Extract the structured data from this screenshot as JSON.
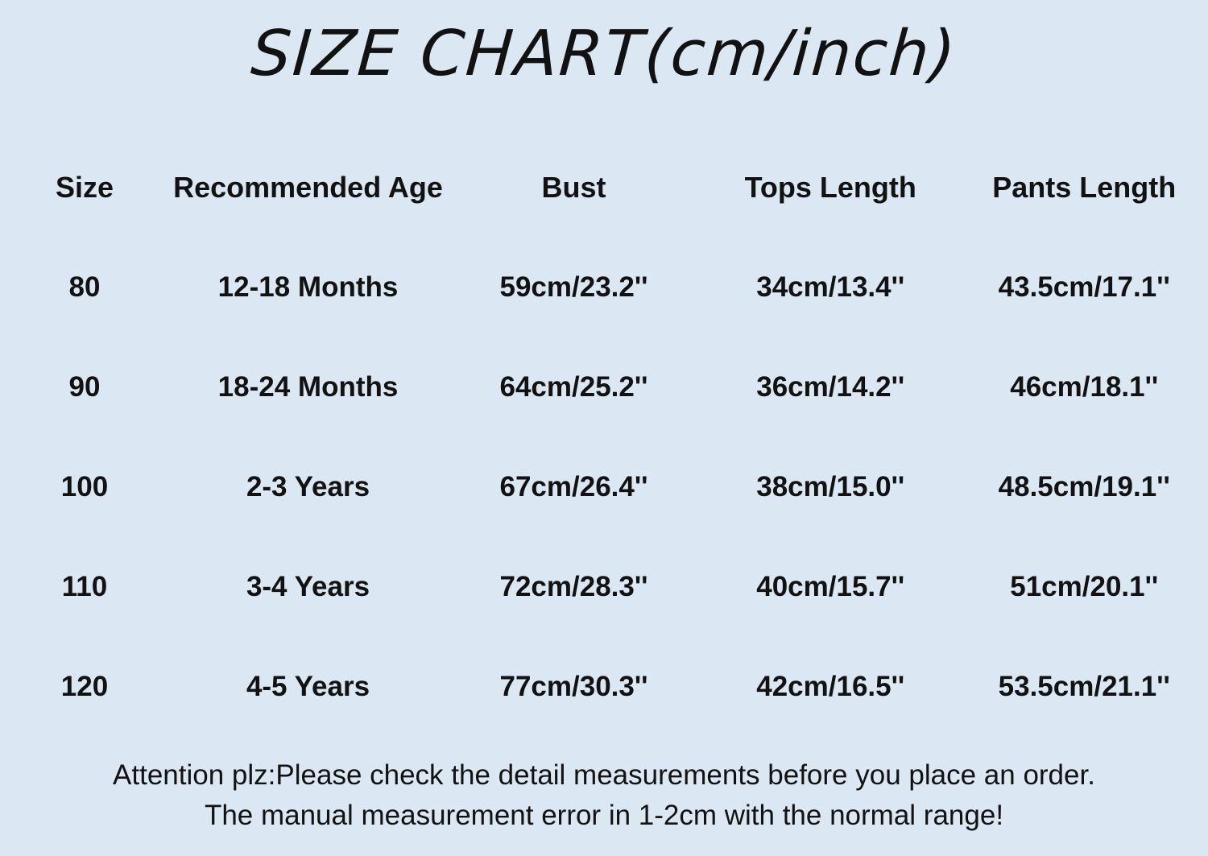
{
  "page": {
    "background_color": "#dbe8f4",
    "text_color": "#121212"
  },
  "title": "SIZE CHART(cm/inch)",
  "table": {
    "headers": [
      "Size",
      "Recommended Age",
      "Bust",
      "Tops Length",
      "Pants Length"
    ],
    "rows": [
      [
        "80",
        "12-18 Months",
        "59cm/23.2''",
        "34cm/13.4''",
        "43.5cm/17.1''"
      ],
      [
        "90",
        "18-24 Months",
        "64cm/25.2''",
        "36cm/14.2''",
        "46cm/18.1''"
      ],
      [
        "100",
        "2-3 Years",
        "67cm/26.4''",
        "38cm/15.0''",
        "48.5cm/19.1''"
      ],
      [
        "110",
        "3-4 Years",
        "72cm/28.3''",
        "40cm/15.7''",
        "51cm/20.1''"
      ],
      [
        "120",
        "4-5 Years",
        "77cm/30.3''",
        "42cm/16.5''",
        "53.5cm/21.1''"
      ]
    ]
  },
  "footer": {
    "line1": "Attention plz:Please check the detail measurements before you place an order.",
    "line2": "The manual measurement error in 1-2cm with the normal range!"
  }
}
